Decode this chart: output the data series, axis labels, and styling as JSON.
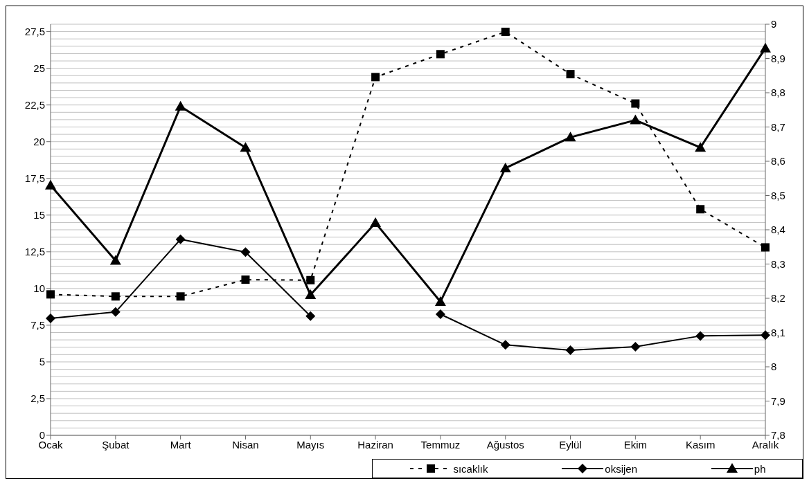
{
  "chart_data": {
    "type": "line",
    "categories": [
      "Ocak",
      "Şubat",
      "Mart",
      "Nisan",
      "Mayıs",
      "Haziran",
      "Temmuz",
      "Ağustos",
      "Eylül",
      "Ekim",
      "Kasım",
      "Aralık"
    ],
    "series": [
      {
        "name": "sıcaklık",
        "color": "#000000",
        "marker": "square",
        "line_style": "dashed",
        "values": [
          9.6,
          9.46,
          9.46,
          10.6,
          10.57,
          24.4,
          25.96,
          27.48,
          24.6,
          22.6,
          15.4,
          12.8
        ]
      },
      {
        "name": "oksijen",
        "color": "#000000",
        "marker": "diamond",
        "line_style": "solid",
        "values": [
          7.97,
          8.4,
          13.35,
          12.48,
          8.12,
          null,
          8.25,
          6.16,
          5.8,
          6.03,
          6.77,
          6.82
        ]
      },
      {
        "name": "ph",
        "color": "#000000",
        "marker": "triangle",
        "line_style": "solid",
        "axis": "y2",
        "values": [
          8.53,
          8.31,
          8.76,
          8.64,
          8.21,
          8.42,
          8.19,
          8.58,
          8.67,
          8.72,
          8.64,
          8.93
        ]
      }
    ],
    "ylim": [
      0,
      28
    ],
    "yticks": [
      0,
      {
        "value": 2.5,
        "label": "2,5"
      },
      5,
      {
        "value": 7.5,
        "label": "7,5"
      },
      10,
      {
        "value": 12.5,
        "label": "12,5"
      },
      15,
      {
        "value": 17.5,
        "label": "17,5"
      },
      20,
      {
        "value": 22.5,
        "label": "22,5"
      },
      25,
      {
        "value": 27.5,
        "label": "27,5"
      }
    ],
    "y2lim": [
      7.8,
      9
    ],
    "y2ticks": [
      {
        "value": 7.8,
        "label": "7,8"
      },
      {
        "value": 7.9,
        "label": "7,9"
      },
      8,
      {
        "value": 8.1,
        "label": "8,1"
      },
      {
        "value": 8.2,
        "label": "8,2"
      },
      {
        "value": 8.3,
        "label": "8,3"
      },
      {
        "value": 8.4,
        "label": "8,4"
      },
      {
        "value": 8.5,
        "label": "8,5"
      },
      {
        "value": 8.6,
        "label": "8,6"
      },
      {
        "value": 8.7,
        "label": "8,7"
      },
      {
        "value": 8.8,
        "label": "8,8"
      },
      {
        "value": 8.9,
        "label": "8,9"
      },
      9
    ],
    "grid": "y",
    "legend": "bottom right"
  }
}
